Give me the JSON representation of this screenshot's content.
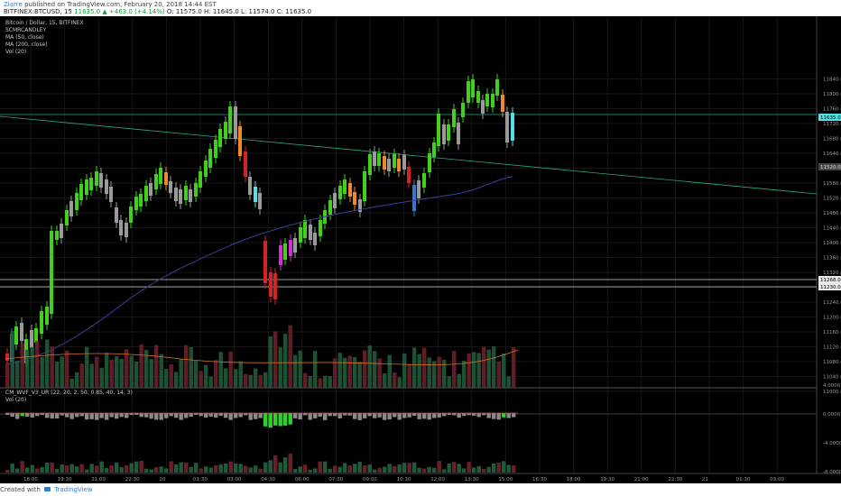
{
  "header": {
    "author": "Ziarre",
    "published_text": "published on TradingView.com, February 20, 2018 14:44 EST",
    "symbol": "BITFINEX:BTCUSD, 15",
    "change": "11635.0 ▲ +463.0 (+4.14%)",
    "ohlc": "O: 11575.0 H: 11645.0 L: 11574.0 C: 11635.0"
  },
  "legend_top": [
    "Bitcoin / Dollar, 15, BITFINEX",
    "SCMRCANDLEY",
    "MA (50, close)",
    "MA (200, close)",
    "Vol (20)"
  ],
  "legend_bottom": [
    "CM_WVF_V3_UR (22, 20, 2, 50, 0.85, 40, 14, 3)",
    "Vol (20)"
  ],
  "price_axis": [
    "11840.0",
    "11800.0",
    "11760.0",
    "11720.0",
    "11680.0",
    "11640.0",
    "11600.0",
    "11560.0",
    "11520.0",
    "11480.0",
    "11440.0",
    "11400.0",
    "11360.0",
    "11320.0",
    "11280.0",
    "11240.0",
    "11200.0",
    "11160.0",
    "11120.0",
    "11080.0",
    "11040.0",
    "11000.0"
  ],
  "price_tags": {
    "current": "11635.0",
    "line": "11520.0",
    "low1": "11268.0",
    "low2": "11230.0"
  },
  "lower_axis": [
    "4.0000",
    "0.0000",
    "-4.0000",
    "-8.0000"
  ],
  "time_axis": [
    "18:00",
    "19:30",
    "21:00",
    "22:30",
    "20",
    "01:30",
    "03:00",
    "04:30",
    "06:00",
    "07:30",
    "09:00",
    "10:30",
    "12:00",
    "13:30",
    "15:00",
    "16:30",
    "18:00",
    "19:30",
    "21:00",
    "22:30",
    "21",
    "01:30",
    "03:00"
  ],
  "footer": {
    "created": "Created with",
    "brand": "TradingView"
  },
  "colors": {
    "bull": "#41d11c",
    "bear": "#d62222",
    "neutral": "#9a9a9a",
    "orange": "#f0882a",
    "blue": "#2f7ccf",
    "magenta": "#d62bd6",
    "cyan": "#4fe3e8",
    "trend": "#2aa98c",
    "ma": "#3a3f9c"
  },
  "chart_data": {
    "type": "candlestick",
    "symbol": "BITFINEX:BTCUSD",
    "interval": "15",
    "ylim": [
      10990,
      11860
    ],
    "last": {
      "open": 11575.0,
      "high": 11645.0,
      "low": 11574.0,
      "close": 11635.0
    }
  }
}
